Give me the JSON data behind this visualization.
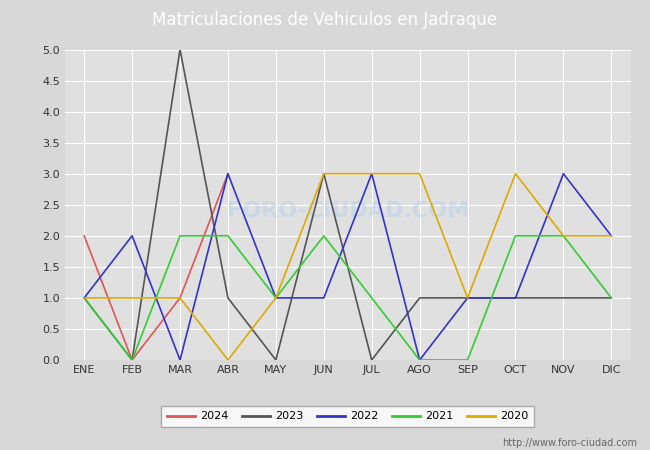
{
  "title": "Matriculaciones de Vehiculos en Jadraque",
  "months": [
    "ENE",
    "FEB",
    "MAR",
    "ABR",
    "MAY",
    "JUN",
    "JUL",
    "AGO",
    "SEP",
    "OCT",
    "NOV",
    "DIC"
  ],
  "series": {
    "2024": [
      2,
      0,
      1,
      3,
      null,
      null,
      null,
      null,
      null,
      null,
      null,
      null
    ],
    "2023": [
      1,
      0,
      5,
      1,
      0,
      3,
      0,
      1,
      1,
      1,
      1,
      1
    ],
    "2022": [
      1,
      2,
      0,
      3,
      1,
      1,
      3,
      0,
      1,
      1,
      3,
      2
    ],
    "2021": [
      1,
      0,
      2,
      2,
      1,
      2,
      1,
      0,
      0,
      2,
      2,
      1
    ],
    "2020": [
      1,
      1,
      1,
      0,
      1,
      3,
      3,
      3,
      1,
      3,
      2,
      2
    ]
  },
  "colors": {
    "2024": "#e05555",
    "2023": "#555555",
    "2022": "#3333cc",
    "2021": "#33cc33",
    "2020": "#ddaa00"
  },
  "ylim": [
    0.0,
    5.0
  ],
  "yticks": [
    0.0,
    0.5,
    1.0,
    1.5,
    2.0,
    2.5,
    3.0,
    3.5,
    4.0,
    4.5,
    5.0
  ],
  "background_color": "#d8d8d8",
  "plot_bg_color": "#e0e0e0",
  "title_bg_color": "#5588cc",
  "title_color": "#ffffff",
  "watermark_text": "FORO-CIUDAD.COM",
  "watermark_url": "http://www.foro-ciudad.com",
  "legend_order": [
    "2024",
    "2023",
    "2022",
    "2021",
    "2020"
  ],
  "title_fontsize": 12,
  "tick_fontsize": 8,
  "legend_fontsize": 8,
  "linewidth": 1.2
}
